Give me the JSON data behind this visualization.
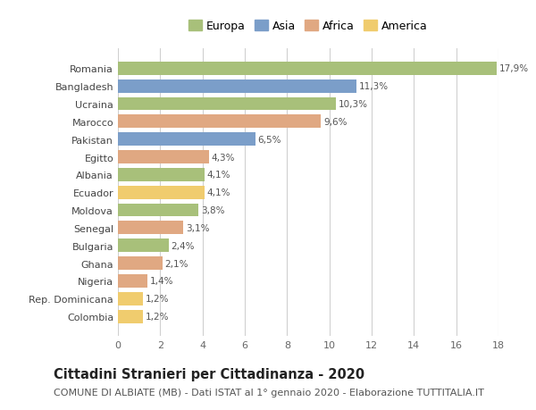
{
  "countries": [
    "Romania",
    "Bangladesh",
    "Ucraina",
    "Marocco",
    "Pakistan",
    "Egitto",
    "Albania",
    "Ecuador",
    "Moldova",
    "Senegal",
    "Bulgaria",
    "Ghana",
    "Nigeria",
    "Rep. Dominicana",
    "Colombia"
  ],
  "values": [
    17.9,
    11.3,
    10.3,
    9.6,
    6.5,
    4.3,
    4.1,
    4.1,
    3.8,
    3.1,
    2.4,
    2.1,
    1.4,
    1.2,
    1.2
  ],
  "labels": [
    "17,9%",
    "11,3%",
    "10,3%",
    "9,6%",
    "6,5%",
    "4,3%",
    "4,1%",
    "4,1%",
    "3,8%",
    "3,1%",
    "2,4%",
    "2,1%",
    "1,4%",
    "1,2%",
    "1,2%"
  ],
  "continent": [
    "Europa",
    "Asia",
    "Europa",
    "Africa",
    "Asia",
    "Africa",
    "Europa",
    "America",
    "Europa",
    "Africa",
    "Europa",
    "Africa",
    "Africa",
    "America",
    "America"
  ],
  "colors": {
    "Europa": "#a8c07a",
    "Asia": "#7b9ec9",
    "Africa": "#e0a882",
    "America": "#f0cc6e"
  },
  "title": "Cittadini Stranieri per Cittadinanza - 2020",
  "subtitle": "COMUNE DI ALBIATE (MB) - Dati ISTAT al 1° gennaio 2020 - Elaborazione TUTTITALIA.IT",
  "xlim": [
    0,
    18
  ],
  "xticks": [
    0,
    2,
    4,
    6,
    8,
    10,
    12,
    14,
    16,
    18
  ],
  "background_color": "#ffffff",
  "grid_color": "#d0d0d0",
  "bar_height": 0.75,
  "title_fontsize": 10.5,
  "subtitle_fontsize": 8,
  "label_fontsize": 7.5,
  "tick_fontsize": 8,
  "legend_fontsize": 9
}
